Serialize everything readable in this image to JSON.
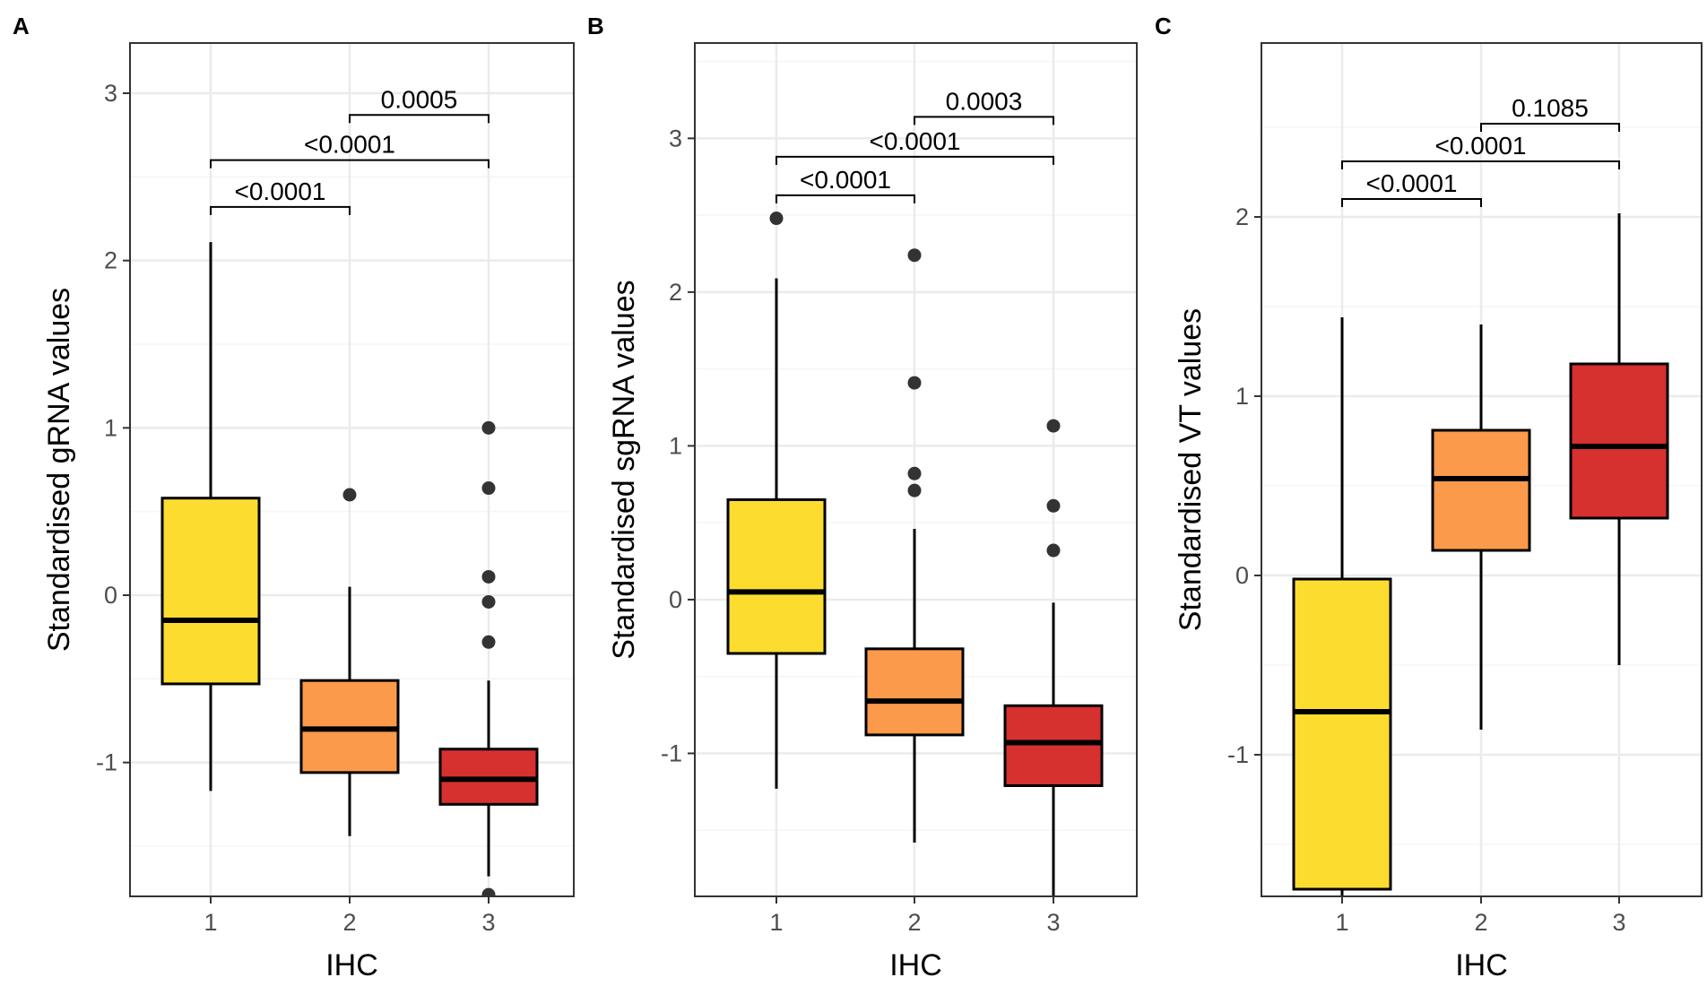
{
  "chart_data": [
    {
      "panel": "A",
      "type": "box",
      "xlabel": "IHC",
      "ylabel": "Standardised gRNA values",
      "categories": [
        "1",
        "2",
        "3"
      ],
      "yticks": [
        -1,
        0,
        1,
        2,
        3
      ],
      "ytick_labels": [
        "-1",
        "0",
        "1",
        "2",
        "3"
      ],
      "ylim": [
        -1.8,
        3.3
      ],
      "boxes": [
        {
          "category": "1",
          "min": -1.17,
          "q1": -0.53,
          "median": -0.15,
          "q3": 0.58,
          "max": 2.11,
          "outliers": []
        },
        {
          "category": "2",
          "min": -1.44,
          "q1": -1.06,
          "median": -0.8,
          "q3": -0.51,
          "max": 0.05,
          "outliers": [
            0.6
          ]
        },
        {
          "category": "3",
          "min": -1.68,
          "q1": -1.25,
          "median": -1.1,
          "q3": -0.92,
          "max": -0.51,
          "outliers": [
            1.0,
            0.64,
            0.11,
            -0.04,
            -0.28,
            -1.79
          ]
        }
      ],
      "comparisons": [
        {
          "from": "1",
          "to": "2",
          "label": "<0.0001",
          "y": 2.32
        },
        {
          "from": "1",
          "to": "3",
          "label": "<0.0001",
          "y": 2.6
        },
        {
          "from": "2",
          "to": "3",
          "label": "0.0005",
          "y": 2.87
        }
      ]
    },
    {
      "panel": "B",
      "type": "box",
      "xlabel": "IHC",
      "ylabel": "Standardised sgRNA values",
      "categories": [
        "1",
        "2",
        "3"
      ],
      "yticks": [
        -1,
        0,
        1,
        2,
        3
      ],
      "ytick_labels": [
        "-1",
        "0",
        "1",
        "2",
        "3"
      ],
      "ylim": [
        -1.93,
        3.62
      ],
      "boxes": [
        {
          "category": "1",
          "min": -1.23,
          "q1": -0.35,
          "median": 0.05,
          "q3": 0.65,
          "max": 2.09,
          "outliers": [
            2.48
          ]
        },
        {
          "category": "2",
          "min": -1.58,
          "q1": -0.88,
          "median": -0.66,
          "q3": -0.32,
          "max": 0.46,
          "outliers": [
            2.24,
            1.41,
            0.82,
            0.71
          ]
        },
        {
          "category": "3",
          "min": -1.93,
          "q1": -1.21,
          "median": -0.93,
          "q3": -0.69,
          "max": -0.02,
          "outliers": [
            1.13,
            0.61,
            0.32
          ]
        }
      ],
      "comparisons": [
        {
          "from": "1",
          "to": "2",
          "label": "<0.0001",
          "y": 2.63
        },
        {
          "from": "1",
          "to": "3",
          "label": "<0.0001",
          "y": 2.88
        },
        {
          "from": "2",
          "to": "3",
          "label": "0.0003",
          "y": 3.14
        }
      ]
    },
    {
      "panel": "C",
      "type": "box",
      "xlabel": "IHC",
      "ylabel": "Standardised VT values",
      "categories": [
        "1",
        "2",
        "3"
      ],
      "yticks": [
        -1,
        0,
        1,
        2
      ],
      "ytick_labels": [
        "-1",
        "0",
        "1",
        "2"
      ],
      "ylim": [
        -1.79,
        2.97
      ],
      "boxes": [
        {
          "category": "1",
          "min": -1.79,
          "q1": -1.75,
          "median": -0.76,
          "q3": -0.02,
          "max": 1.44,
          "outliers": []
        },
        {
          "category": "2",
          "min": -0.86,
          "q1": 0.14,
          "median": 0.54,
          "q3": 0.81,
          "max": 1.4,
          "outliers": []
        },
        {
          "category": "3",
          "min": -0.5,
          "q1": 0.32,
          "median": 0.72,
          "q3": 1.18,
          "max": 2.02,
          "outliers": []
        }
      ],
      "comparisons": [
        {
          "from": "1",
          "to": "2",
          "label": "<0.0001",
          "y": 2.1
        },
        {
          "from": "1",
          "to": "3",
          "label": "<0.0001",
          "y": 2.31
        },
        {
          "from": "2",
          "to": "3",
          "label": "0.1085",
          "y": 2.52
        }
      ]
    }
  ],
  "colors": {
    "category_fills": [
      "#fcdd2f",
      "#fb9a4a",
      "#d6302f"
    ],
    "grid_major": "#ebebeb",
    "grid_minor": "#f5f5f5",
    "frame": "#333333",
    "outlier": "#333333",
    "box_line": "#000000"
  }
}
